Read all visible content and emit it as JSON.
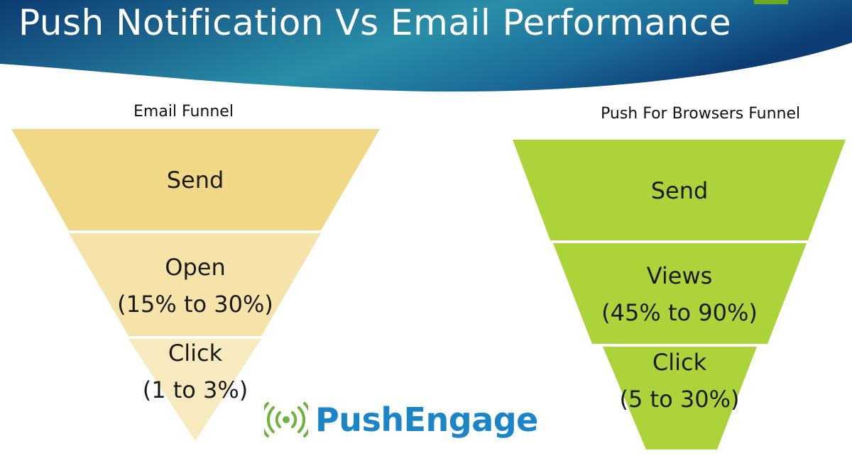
{
  "slide": {
    "title": "Push Notification Vs Email Performance"
  },
  "colors": {
    "header_dark": "#0d3b73",
    "header_light": "#2a8fa8",
    "corner_tab": "#6aa924",
    "email_top": "#f0d886",
    "email_mid": "#f5e3aa",
    "email_bottom": "#f8eabf",
    "push": "#acd43a",
    "logo_blue": "#1a86c8",
    "logo_green": "#6db33f"
  },
  "email_funnel": {
    "title": "Email Funnel",
    "stages": [
      {
        "lines": [
          "Send"
        ]
      },
      {
        "lines": [
          "Open",
          "(15% to 30%)"
        ]
      },
      {
        "lines": [
          "Click",
          "(1 to 3%)"
        ]
      }
    ]
  },
  "push_funnel": {
    "title": "Push For Browsers Funnel",
    "stages": [
      {
        "lines": [
          "Send"
        ]
      },
      {
        "lines": [
          "Views",
          "(45% to 90%)"
        ]
      },
      {
        "lines": [
          "Click",
          "(5 to 30%)"
        ]
      }
    ]
  },
  "logo": {
    "icon": "broadcast-signal-icon",
    "text": "PushEngage"
  }
}
